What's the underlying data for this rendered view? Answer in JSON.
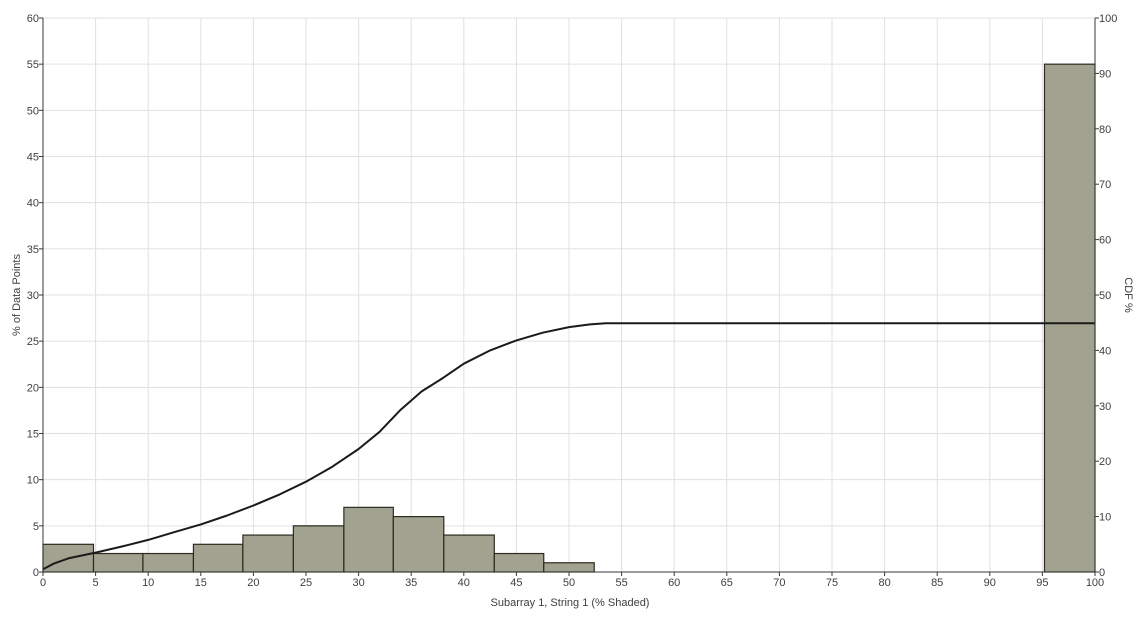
{
  "chart_data": {
    "type": "bar",
    "xlabel": "Subarray 1, String 1 (% Shaded)",
    "ylabel": "% of Data Points",
    "y2label": "CDF %",
    "xlim": [
      0,
      100
    ],
    "ylim": [
      0,
      60
    ],
    "y2lim": [
      0,
      100
    ],
    "xticks": [
      0,
      5,
      10,
      15,
      20,
      25,
      30,
      35,
      40,
      45,
      50,
      55,
      60,
      65,
      70,
      75,
      80,
      85,
      90,
      95,
      100
    ],
    "yticks": [
      0,
      5,
      10,
      15,
      20,
      25,
      30,
      35,
      40,
      45,
      50,
      55,
      60
    ],
    "y2ticks": [
      0,
      10,
      20,
      30,
      40,
      50,
      60,
      70,
      80,
      90,
      100
    ],
    "grid": true,
    "colors": {
      "bar_fill": "#a2a291",
      "bar_stroke": "#2b2b22",
      "cdf_line": "#1a1a1a",
      "grid": "#e0e0e0",
      "axis": "#3a3a3a"
    },
    "bins": [
      {
        "start": 0.0,
        "end": 4.8,
        "value": 3
      },
      {
        "start": 4.8,
        "end": 9.5,
        "value": 2
      },
      {
        "start": 9.5,
        "end": 14.3,
        "value": 2
      },
      {
        "start": 14.3,
        "end": 19.0,
        "value": 3
      },
      {
        "start": 19.0,
        "end": 23.8,
        "value": 4
      },
      {
        "start": 23.8,
        "end": 28.6,
        "value": 5
      },
      {
        "start": 28.6,
        "end": 33.3,
        "value": 7
      },
      {
        "start": 33.3,
        "end": 38.1,
        "value": 6
      },
      {
        "start": 38.1,
        "end": 42.9,
        "value": 4
      },
      {
        "start": 42.9,
        "end": 47.6,
        "value": 2
      },
      {
        "start": 47.6,
        "end": 52.4,
        "value": 1
      },
      {
        "start": 95.2,
        "end": 100.0,
        "value": 55
      }
    ],
    "cdf": {
      "x": [
        0,
        1,
        2.5,
        5,
        7.5,
        10,
        12.5,
        15,
        17.5,
        20,
        22.5,
        25,
        27.5,
        30,
        32,
        34,
        36,
        38,
        40,
        42.5,
        45,
        47.5,
        50,
        52,
        53.5,
        60,
        70,
        80,
        90,
        100
      ],
      "y": [
        0.5,
        1.5,
        2.5,
        3.5,
        4.6,
        5.8,
        7.2,
        8.6,
        10.2,
        12.0,
        14.0,
        16.3,
        19.0,
        22.2,
        25.3,
        29.3,
        32.6,
        35.0,
        37.6,
        40.0,
        41.8,
        43.2,
        44.2,
        44.7,
        44.9,
        44.9,
        44.9,
        44.9,
        44.9,
        44.9
      ]
    }
  }
}
